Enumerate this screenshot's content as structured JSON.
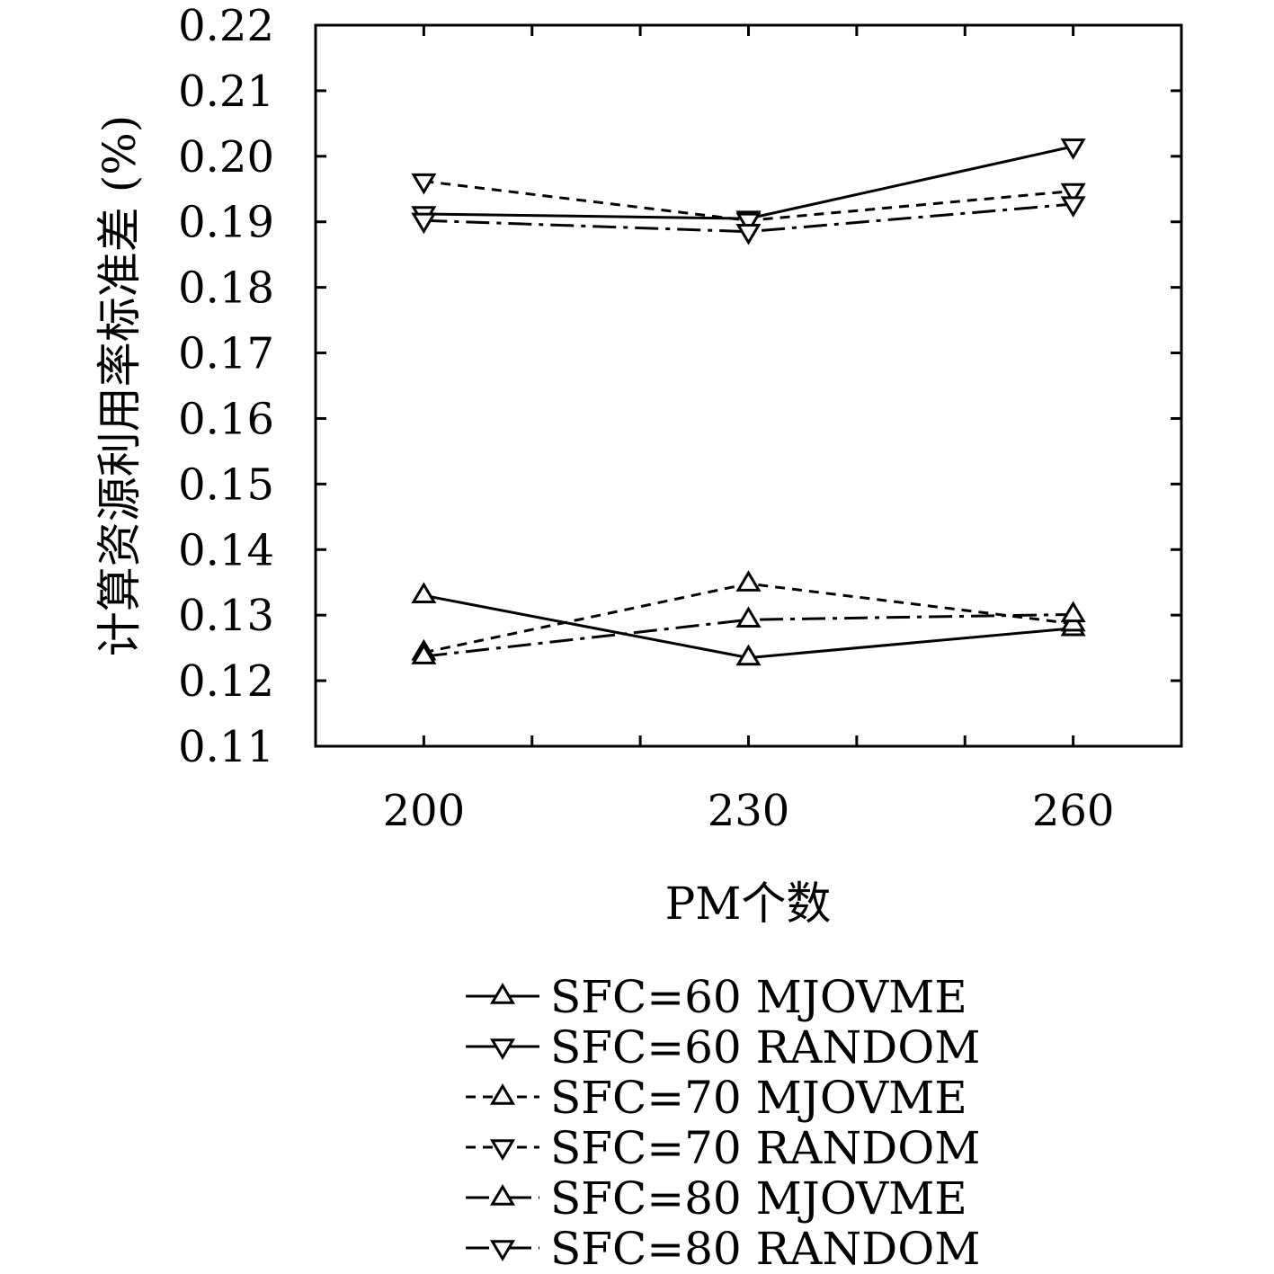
{
  "chart_data": {
    "type": "line",
    "xlabel": "PM个数",
    "ylabel": "计算资源利用率标准差 (%)",
    "categories": [
      "200",
      "230",
      "260"
    ],
    "x": [
      200,
      230,
      260
    ],
    "xlim": [
      190,
      270
    ],
    "ylim": [
      0.11,
      0.22
    ],
    "yticks": [
      "0.11",
      "0.12",
      "0.13",
      "0.14",
      "0.15",
      "0.16",
      "0.17",
      "0.18",
      "0.19",
      "0.20",
      "0.21",
      "0.22"
    ],
    "series": [
      {
        "name": "SFC=60 MJOVME",
        "values": [
          0.133,
          0.1235,
          0.128
        ],
        "dash": "solid",
        "marker": "triangle-up"
      },
      {
        "name": "SFC=60 RANDOM",
        "values": [
          0.1912,
          0.1905,
          0.2015
        ],
        "dash": "solid",
        "marker": "triangle-down"
      },
      {
        "name": "SFC=70 MJOVME",
        "values": [
          0.1243,
          0.1348,
          0.1287
        ],
        "dash": "dashed",
        "marker": "triangle-up"
      },
      {
        "name": "SFC=70 RANDOM",
        "values": [
          0.1962,
          0.1902,
          0.1947
        ],
        "dash": "dashed",
        "marker": "triangle-down"
      },
      {
        "name": "SFC=80 MJOVME",
        "values": [
          0.1237,
          0.1293,
          0.1301
        ],
        "dash": "dashdot",
        "marker": "triangle-up"
      },
      {
        "name": "SFC=80 RANDOM",
        "values": [
          0.1902,
          0.1885,
          0.1927
        ],
        "dash": "dashdot",
        "marker": "triangle-down"
      }
    ],
    "legend_position": "bottom"
  }
}
